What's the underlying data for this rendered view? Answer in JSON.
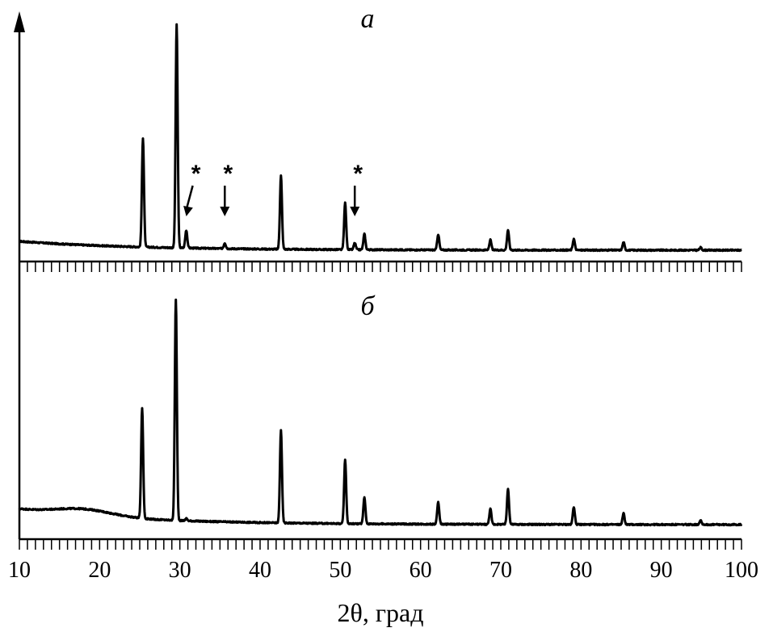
{
  "chart_data": {
    "type": "line",
    "xlabel": "2θ, град",
    "ylabel": "",
    "xlim": [
      10,
      100
    ],
    "x_ticks": [
      10,
      20,
      30,
      40,
      50,
      60,
      70,
      80,
      90,
      100
    ],
    "minor_tick_step": 1,
    "grid": false,
    "panels": [
      {
        "label": "а",
        "baseline_left": 0.04,
        "baseline_right": 0.0,
        "peaks": [
          {
            "x": 25.4,
            "y": 0.49
          },
          {
            "x": 29.6,
            "y": 1.0
          },
          {
            "x": 30.8,
            "y": 0.08
          },
          {
            "x": 35.6,
            "y": 0.025
          },
          {
            "x": 42.6,
            "y": 0.33
          },
          {
            "x": 50.6,
            "y": 0.21
          },
          {
            "x": 51.8,
            "y": 0.03
          },
          {
            "x": 53.0,
            "y": 0.07
          },
          {
            "x": 62.2,
            "y": 0.07
          },
          {
            "x": 68.7,
            "y": 0.045
          },
          {
            "x": 70.9,
            "y": 0.09
          },
          {
            "x": 79.1,
            "y": 0.05
          },
          {
            "x": 85.3,
            "y": 0.035
          },
          {
            "x": 94.9,
            "y": 0.012
          }
        ],
        "annotations": [
          {
            "text": "*",
            "x": 30.8
          },
          {
            "text": "*",
            "x": 35.6
          },
          {
            "text": "*",
            "x": 51.8
          }
        ]
      },
      {
        "label": "б",
        "baseline_left": 0.07,
        "baseline_right": 0.0,
        "amorphous_hump": {
          "center": 18,
          "height": 0.03
        },
        "peaks": [
          {
            "x": 25.3,
            "y": 0.5
          },
          {
            "x": 29.5,
            "y": 1.0
          },
          {
            "x": 30.8,
            "y": 0.01
          },
          {
            "x": 42.6,
            "y": 0.42
          },
          {
            "x": 50.6,
            "y": 0.29
          },
          {
            "x": 53.0,
            "y": 0.12
          },
          {
            "x": 62.2,
            "y": 0.1
          },
          {
            "x": 68.7,
            "y": 0.07
          },
          {
            "x": 70.9,
            "y": 0.16
          },
          {
            "x": 79.1,
            "y": 0.08
          },
          {
            "x": 85.3,
            "y": 0.05
          },
          {
            "x": 94.9,
            "y": 0.02
          }
        ],
        "annotations": []
      }
    ]
  }
}
